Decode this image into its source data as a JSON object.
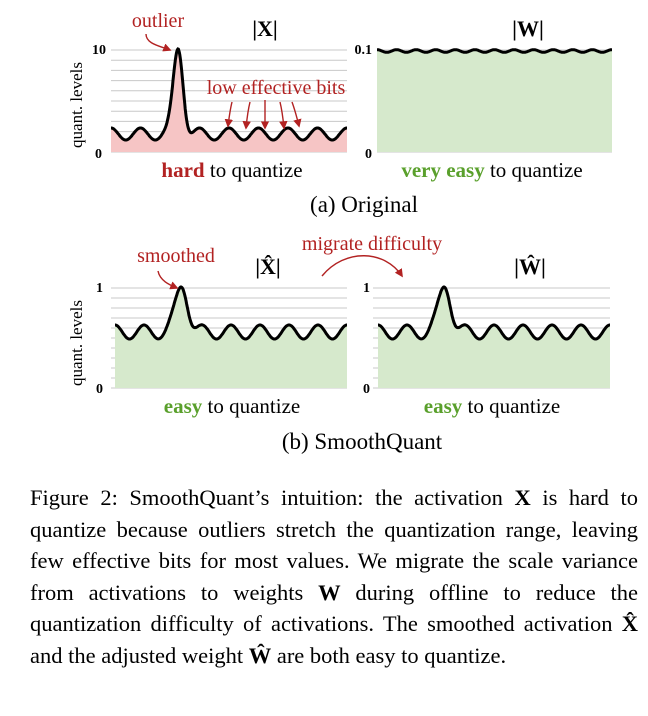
{
  "colors": {
    "red": "#b22222",
    "green": "#5aa02c",
    "red_fill": "#f6c5c5",
    "green_fill": "#d6e9cc",
    "grid": "#c8c8c8"
  },
  "figure": {
    "y_label": "quant. levels",
    "original": {
      "x_title": "|X|",
      "w_title": "|W|",
      "x_tick_top": "10",
      "x_tick_bottom": "0",
      "w_tick_top": "0.1",
      "w_tick_bottom": "0",
      "outlier_label": "outlier",
      "low_bits_label": "low effective bits",
      "x_verdict": {
        "emph": "hard",
        "rest": " to quantize"
      },
      "w_verdict": {
        "emph": "very easy",
        "rest": " to quantize"
      },
      "subcaption": "(a) Original"
    },
    "smooth": {
      "x_title": "|X̂|",
      "w_title": "|Ŵ|",
      "x_tick_top": "1",
      "x_tick_bottom": "0",
      "w_tick_top": "1",
      "w_tick_bottom": "0",
      "smoothed_label": "smoothed",
      "migrate_label": "migrate difficulty",
      "x_verdict": {
        "emph": "easy",
        "rest": " to quantize"
      },
      "w_verdict": {
        "emph": "easy",
        "rest": " to quantize"
      },
      "subcaption": "(b) SmoothQuant"
    }
  },
  "caption": {
    "prefix": "Figure 2: SmoothQuant’s intuition: the activation ",
    "x": "X",
    "t1": " is hard to quantize because outliers stretch the quantization range, leaving few effective bits for most values. We migrate the scale variance from activations to weights ",
    "w": "W",
    "t2": " during offline to reduce the quantization difficulty of activations.  The smoothed activation ",
    "xhat": "X̂",
    "t3": " and the adjusted weight ",
    "what": "Ŵ",
    "t4": " are both easy to quantize."
  }
}
